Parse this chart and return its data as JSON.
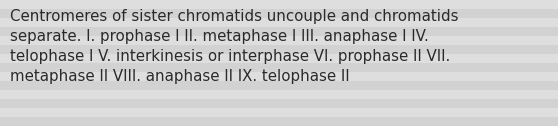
{
  "lines": [
    "Centromeres of sister chromatids uncouple and chromatids",
    "separate. I. prophase I II. metaphase I III. anaphase I IV.",
    "telophase I V. interkinesis or interphase VI. prophase II VII.",
    "metaphase II VIII. anaphase II IX. telophase II"
  ],
  "bg_light": "#dcdcdc",
  "bg_dark": "#c8c8c8",
  "stripe_colors": [
    "#d0d0d0",
    "#dedede",
    "#d0d0d0",
    "#dedede",
    "#d0d0d0",
    "#dedede",
    "#d0d0d0",
    "#dedede",
    "#d0d0d0",
    "#dedede",
    "#d0d0d0",
    "#dedede",
    "#d0d0d0",
    "#dedede"
  ],
  "text_color": "#2a2a2a",
  "font_size": 10.8,
  "fig_width": 5.58,
  "fig_height": 1.26
}
